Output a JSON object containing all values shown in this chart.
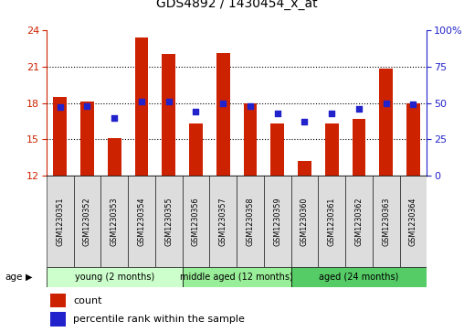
{
  "title": "GDS4892 / 1430454_x_at",
  "categories": [
    "GSM1230351",
    "GSM1230352",
    "GSM1230353",
    "GSM1230354",
    "GSM1230355",
    "GSM1230356",
    "GSM1230357",
    "GSM1230358",
    "GSM1230359",
    "GSM1230360",
    "GSM1230361",
    "GSM1230362",
    "GSM1230363",
    "GSM1230364"
  ],
  "bar_values": [
    18.5,
    18.1,
    15.1,
    23.4,
    22.0,
    16.3,
    22.1,
    18.0,
    16.3,
    13.2,
    16.3,
    16.7,
    20.8,
    18.0
  ],
  "dot_values": [
    47,
    48,
    40,
    51,
    51,
    44,
    50,
    48,
    43,
    37,
    43,
    46,
    50,
    49
  ],
  "bar_color": "#cc2200",
  "dot_color": "#2222cc",
  "ylim_left": [
    12,
    24
  ],
  "ylim_right": [
    0,
    100
  ],
  "yticks_left": [
    12,
    15,
    18,
    21,
    24
  ],
  "yticks_right": [
    0,
    25,
    50,
    75,
    100
  ],
  "ytick_labels_right": [
    "0",
    "25",
    "50",
    "75",
    "100%"
  ],
  "group_colors": [
    "#ccffcc",
    "#99ee99",
    "#55cc66"
  ],
  "groups": [
    {
      "label": "young (2 months)",
      "start": 0,
      "end": 5
    },
    {
      "label": "middle aged (12 months)",
      "start": 5,
      "end": 9
    },
    {
      "label": "aged (24 months)",
      "start": 9,
      "end": 14
    }
  ],
  "age_label": "age",
  "legend_count_label": "count",
  "legend_pct_label": "percentile rank within the sample",
  "cell_bg": "#dddddd",
  "plot_bg": "#ffffff"
}
